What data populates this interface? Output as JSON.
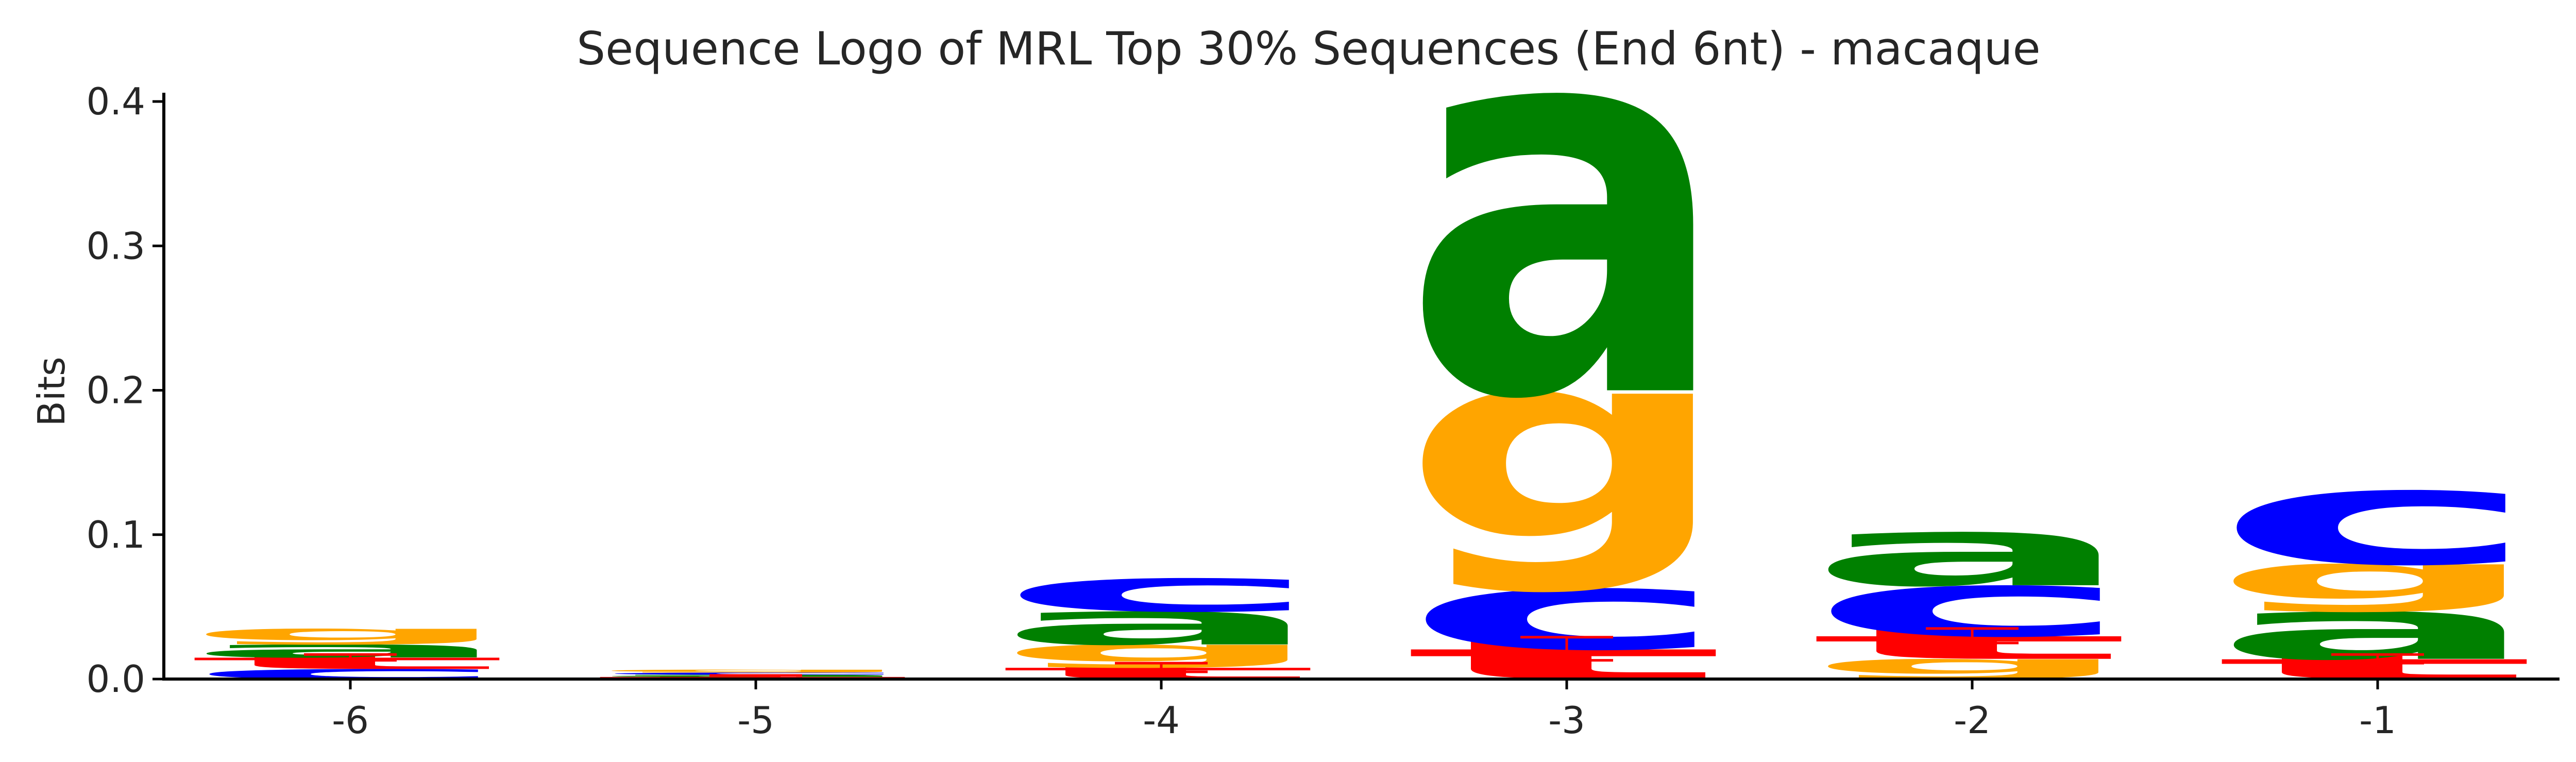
{
  "chart_data": {
    "type": "sequence-logo",
    "title": "Sequence Logo of MRL Top 30% Sequences (End 6nt) - macaque",
    "ylabel": "Bits",
    "xlabel": "",
    "ylim": [
      0,
      0.4
    ],
    "yticks": [
      "0.0",
      "0.1",
      "0.2",
      "0.3",
      "0.4"
    ],
    "ytick_values": [
      0,
      0.1,
      0.2,
      0.3,
      0.4
    ],
    "grid": false,
    "colors": {
      "a": "#008000",
      "c": "#0000ff",
      "g": "#ffa500",
      "t": "#ff0000"
    },
    "positions": [
      {
        "label": "-6",
        "stack": [
          {
            "base": "c",
            "height": 0.007
          },
          {
            "base": "t",
            "height": 0.008
          },
          {
            "base": "a",
            "height": 0.009
          },
          {
            "base": "g",
            "height": 0.011
          }
        ],
        "error": 0.002
      },
      {
        "label": "-5",
        "stack": [
          {
            "base": "t",
            "height": 0.0015
          },
          {
            "base": "a",
            "height": 0.0015
          },
          {
            "base": "c",
            "height": 0.0015
          },
          {
            "base": "g",
            "height": 0.002
          }
        ],
        "error": 0.001
      },
      {
        "label": "-4",
        "stack": [
          {
            "base": "t",
            "height": 0.008
          },
          {
            "base": "g",
            "height": 0.016
          },
          {
            "base": "a",
            "height": 0.023
          },
          {
            "base": "c",
            "height": 0.023
          }
        ],
        "error": 0.003
      },
      {
        "label": "-3",
        "stack": [
          {
            "base": "t",
            "height": 0.021
          },
          {
            "base": "c",
            "height": 0.042
          },
          {
            "base": "g",
            "height": 0.137
          },
          {
            "base": "a",
            "height": 0.206
          }
        ],
        "error": 0.008
      },
      {
        "label": "-2",
        "stack": [
          {
            "base": "g",
            "height": 0.014
          },
          {
            "base": "t",
            "height": 0.016
          },
          {
            "base": "c",
            "height": 0.035
          },
          {
            "base": "a",
            "height": 0.037
          }
        ],
        "error": 0.005
      },
      {
        "label": "-1",
        "stack": [
          {
            "base": "t",
            "height": 0.014
          },
          {
            "base": "a",
            "height": 0.033
          },
          {
            "base": "g",
            "height": 0.033
          },
          {
            "base": "c",
            "height": 0.051
          }
        ],
        "error": 0.003
      }
    ]
  }
}
